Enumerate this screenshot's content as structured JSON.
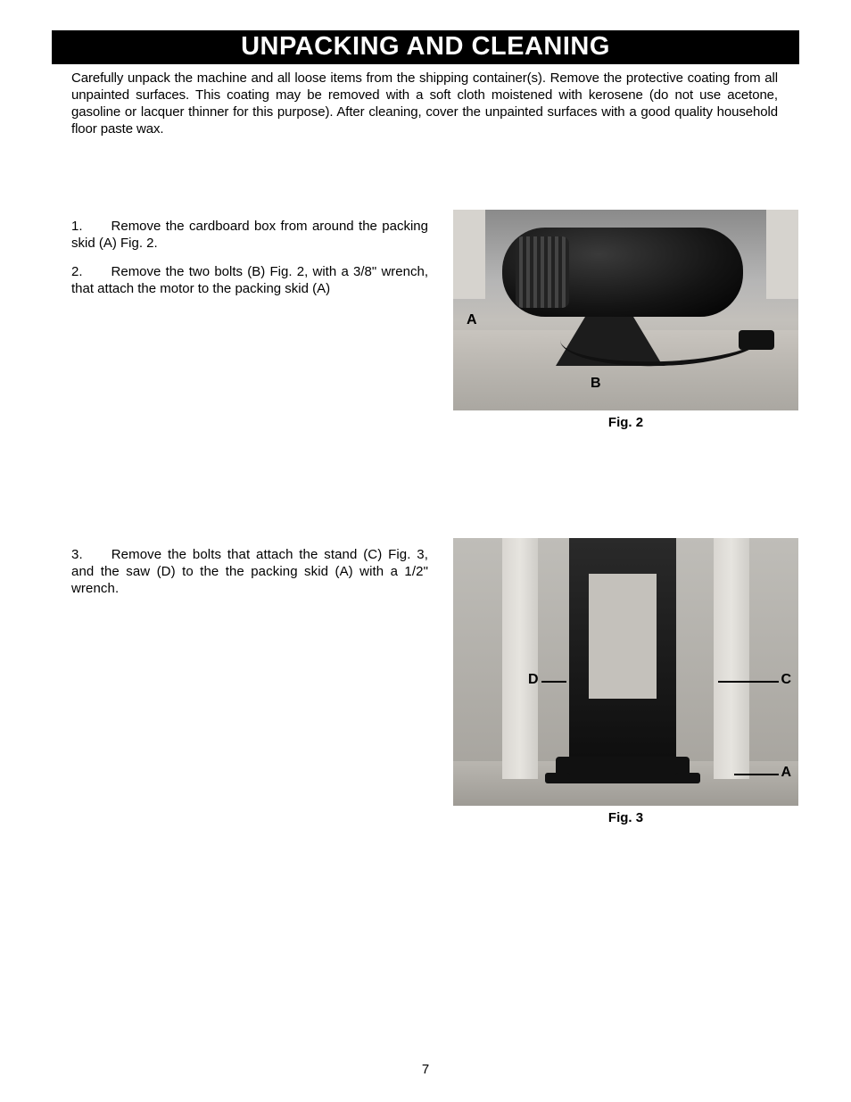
{
  "title": "UNPACKING AND CLEANING",
  "intro": "Carefully unpack the machine and all loose items from the shipping container(s). Remove the protective coating from all unpainted surfaces. This coating may be removed with a soft cloth moistened with kerosene (do not use acetone, gasoline or lacquer thinner for this purpose). After cleaning, cover the unpainted surfaces with a good quality household floor paste wax.",
  "step1_num": "1.",
  "step1_text": "Remove the cardboard box from around the packing skid (A) Fig. 2.",
  "step2_num": "2.",
  "step2_text": "Remove the two bolts (B) Fig. 2, with a 3/8\" wrench, that attach the motor to the packing skid (A)",
  "step3_num": "3.",
  "step3_text": "Remove the bolts that attach the stand (C) Fig. 3, and the saw (D) to the the packing skid (A) with a 1/2\" wrench.",
  "fig2": {
    "caption": "Fig. 2",
    "labelA": "A",
    "labelB": "B"
  },
  "fig3": {
    "caption": "Fig. 3",
    "labelD": "D",
    "labelC": "C",
    "labelA": "A"
  },
  "pageNumber": "7",
  "colors": {
    "titleBg": "#000000",
    "titleFg": "#ffffff",
    "text": "#000000",
    "pageBg": "#ffffff"
  },
  "typography": {
    "titleSize": 29,
    "bodySize": 15,
    "captionSize": 15,
    "family": "Helvetica"
  }
}
